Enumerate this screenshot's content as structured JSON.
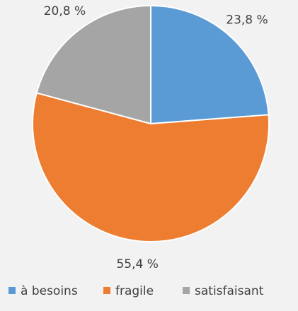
{
  "chart_data": {
    "type": "pie",
    "categories": [
      "à besoins",
      "fragile",
      "satisfaisant"
    ],
    "values": [
      23.8,
      55.4,
      20.8
    ],
    "value_labels": [
      "23,8 %",
      "55,4 %",
      "20,8 %"
    ],
    "colors": [
      "#5b9bd5",
      "#ed7d31",
      "#a5a5a5"
    ],
    "legend": "bottom"
  }
}
